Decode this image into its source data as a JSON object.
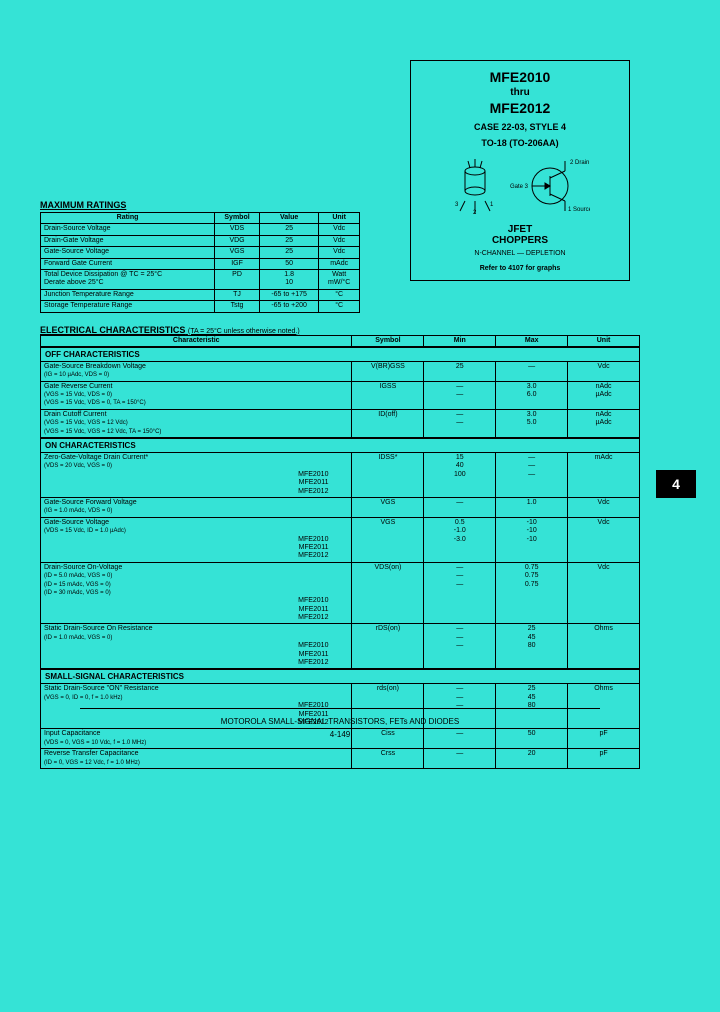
{
  "header": {
    "part1": "MFE2010",
    "thru": "thru",
    "part2": "MFE2012",
    "case": "CASE 22-03, STYLE 4",
    "package": "TO-18 (TO-206AA)",
    "type1": "JFET",
    "type2": "CHOPPERS",
    "channel": "N-CHANNEL — DEPLETION",
    "refer": "Refer to 4107 for graphs"
  },
  "sideTab": "4",
  "maxRatings": {
    "title": "MAXIMUM RATINGS",
    "headers": [
      "Rating",
      "Symbol",
      "Value",
      "Unit"
    ],
    "rows": [
      [
        "Drain-Source Voltage",
        "VDS",
        "25",
        "Vdc"
      ],
      [
        "Drain-Gate Voltage",
        "VDG",
        "25",
        "Vdc"
      ],
      [
        "Gate-Source Voltage",
        "VGS",
        "25",
        "Vdc"
      ],
      [
        "Forward Gate Current",
        "IGF",
        "50",
        "mAdc"
      ],
      [
        "Total Device Dissipation @ TC = 25°C\nDerate above 25°C",
        "PD",
        "1.8\n10",
        "Watt\nmW/°C"
      ],
      [
        "Junction Temperature Range",
        "TJ",
        "-65 to +175",
        "°C"
      ],
      [
        "Storage Temperature Range",
        "Tstg",
        "-65 to +200",
        "°C"
      ]
    ]
  },
  "elecChar": {
    "title": "ELECTRICAL CHARACTERISTICS",
    "note": "(TA = 25°C unless otherwise noted.)",
    "headers": [
      "Characteristic",
      "Symbol",
      "Min",
      "Max",
      "Unit"
    ]
  },
  "offChar": {
    "title": "OFF CHARACTERISTICS",
    "rows": [
      {
        "char": "Gate-Source Breakdown Voltage",
        "cond": "(IG = 10 µAdc, VDS = 0)",
        "sym": "V(BR)GSS",
        "min": "25",
        "max": "—",
        "unit": "Vdc"
      },
      {
        "char": "Gate Reverse Current",
        "cond": "(VGS = 15 Vdc, VDS = 0)\n(VGS = 15 Vdc, VDS = 0, TA = 150°C)",
        "sym": "IGSS",
        "min": "—\n—",
        "max": "3.0\n6.0",
        "unit": "nAdc\nµAdc"
      },
      {
        "char": "Drain Cutoff Current",
        "cond": "(VGS = 15 Vdc, VGS = 12 Vdc)\n(VGS = 15 Vdc, VGS = 12 Vdc, TA = 150°C)",
        "sym": "ID(off)",
        "min": "—\n—",
        "max": "3.0\n5.0",
        "unit": "nAdc\nµAdc"
      }
    ]
  },
  "onChar": {
    "title": "ON CHARACTERISTICS",
    "rows": [
      {
        "char": "Zero-Gate-Voltage Drain Current*",
        "cond": "(VDS = 20 Vdc, VGS = 0)",
        "parts": [
          "MFE2010",
          "MFE2011",
          "MFE2012"
        ],
        "sym": "IDSS*",
        "min": [
          "15",
          "40",
          "100"
        ],
        "max": [
          "—",
          "—",
          "—"
        ],
        "unit": "mAdc"
      },
      {
        "char": "Gate-Source Forward Voltage",
        "cond": "(IG = 1.0 mAdc, VDS = 0)",
        "sym": "VGS",
        "min": "—",
        "max": "1.0",
        "unit": "Vdc"
      },
      {
        "char": "Gate-Source Voltage",
        "cond": "(VDS = 15 Vdc, ID = 1.0 µAdc)",
        "parts": [
          "MFE2010",
          "MFE2011",
          "MFE2012"
        ],
        "sym": "VGS",
        "min": [
          "0.5",
          "-1.0",
          "-3.0"
        ],
        "max": [
          "-10",
          "-10",
          "-10"
        ],
        "unit": "Vdc"
      },
      {
        "char": "Drain-Source On-Voltage",
        "cond": "(ID = 5.0 mAdc, VGS = 0)\n(ID = 15 mAdc, VGS = 0)\n(ID = 30 mAdc, VGS = 0)",
        "parts": [
          "MFE2010",
          "MFE2011",
          "MFE2012"
        ],
        "sym": "VDS(on)",
        "min": [
          "—",
          "—",
          "—"
        ],
        "max": [
          "0.75",
          "0.75",
          "0.75"
        ],
        "unit": "Vdc"
      },
      {
        "char": "Static Drain-Source On Resistance",
        "cond": "(ID = 1.0 mAdc, VGS = 0)",
        "parts": [
          "MFE2010",
          "MFE2011",
          "MFE2012"
        ],
        "sym": "rDS(on)",
        "min": [
          "—",
          "—",
          "—"
        ],
        "max": [
          "25",
          "45",
          "80"
        ],
        "unit": "Ohms"
      }
    ]
  },
  "smallSignal": {
    "title": "SMALL-SIGNAL CHARACTERISTICS",
    "rows": [
      {
        "char": "Static Drain-Source \"ON\" Resistance",
        "cond": "(VGS = 0, ID = 0, f = 1.0 kHz)",
        "parts": [
          "MFE2010",
          "MFE2011",
          "MFE2012"
        ],
        "sym": "rds(on)",
        "min": [
          "—",
          "—",
          "—"
        ],
        "max": [
          "25",
          "45",
          "80"
        ],
        "unit": "Ohms"
      },
      {
        "char": "Input Capacitance",
        "cond": "(VDS = 0, VGS = 10 Vdc, f = 1.0 MHz)",
        "sym": "Ciss",
        "min": "—",
        "max": "50",
        "unit": "pF"
      },
      {
        "char": "Reverse Transfer Capacitance",
        "cond": "(ID = 0, VGS = 12 Vdc, f = 1.0 MHz)",
        "sym": "Crss",
        "min": "—",
        "max": "20",
        "unit": "pF"
      }
    ]
  },
  "footer": {
    "text": "MOTOROLA SMALL-SIGNAL TRANSISTORS, FETs AND DIODES",
    "page": "4-149"
  }
}
